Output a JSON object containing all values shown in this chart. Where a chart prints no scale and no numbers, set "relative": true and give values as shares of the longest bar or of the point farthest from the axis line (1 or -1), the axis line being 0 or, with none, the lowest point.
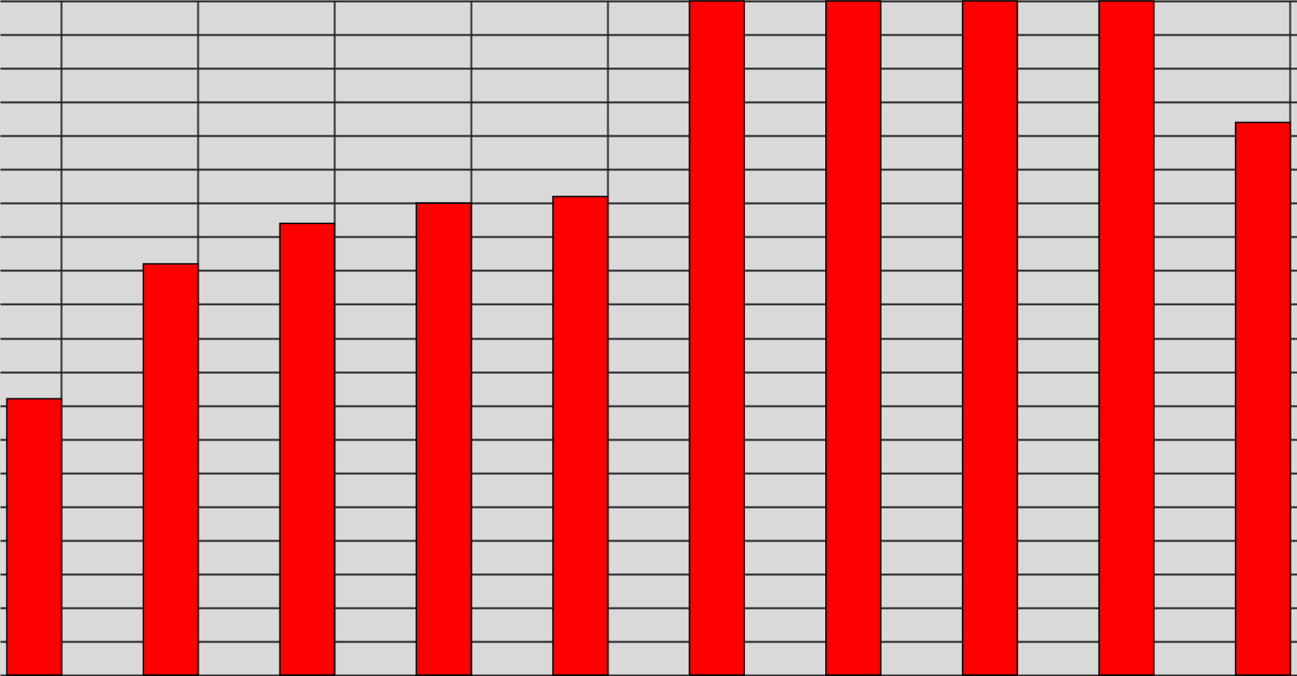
{
  "chart_data": {
    "type": "bar",
    "relative": true,
    "grid": true,
    "categories": [
      null,
      null,
      null,
      null,
      null,
      null,
      null,
      null,
      null,
      null
    ],
    "values": [
      0.41,
      0.61,
      0.67,
      0.7,
      0.71,
      1,
      1,
      1,
      1,
      0.82
    ],
    "color": "#ff0000"
  }
}
